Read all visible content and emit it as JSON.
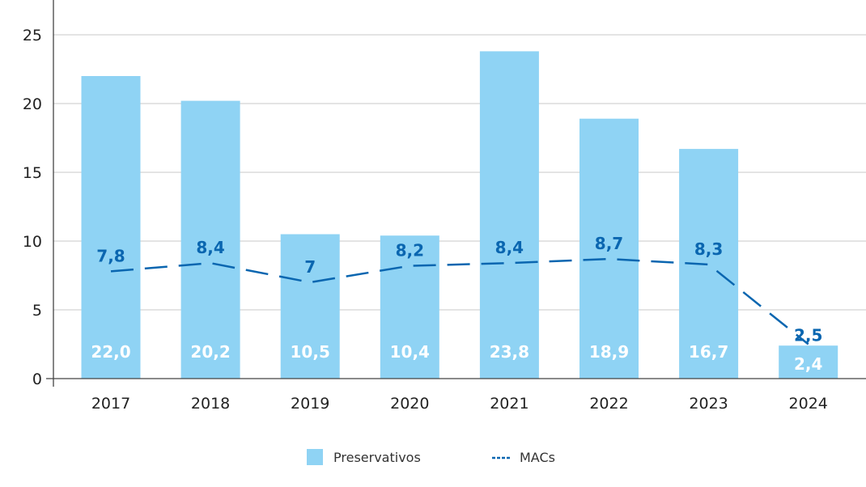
{
  "chart_data": {
    "type": "bar",
    "title": "",
    "xlabel": "",
    "ylabel": "",
    "ylim": [
      0,
      25
    ],
    "yticks": [
      0,
      5,
      10,
      15,
      20,
      25
    ],
    "ytick_labels": [
      "0",
      "5",
      "10",
      "15",
      "20",
      "25"
    ],
    "grid": true,
    "categories": [
      "2017",
      "2018",
      "2019",
      "2020",
      "2021",
      "2022",
      "2023",
      "2024"
    ],
    "series": [
      {
        "name": "Preservativos",
        "type": "bar",
        "color": "#8fd3f4",
        "values": [
          22.0,
          20.2,
          10.5,
          10.4,
          23.8,
          18.9,
          16.7,
          2.4
        ],
        "labels": [
          "22,0",
          "20,2",
          "10,5",
          "10,4",
          "23,8",
          "18,9",
          "16,7",
          "2,4"
        ]
      },
      {
        "name": "MACs",
        "type": "line",
        "style": "dashed",
        "color": "#0a66b0",
        "values": [
          7.8,
          8.4,
          7,
          8.2,
          8.4,
          8.7,
          8.3,
          2.5
        ],
        "labels": [
          "7,8",
          "8,4",
          "7",
          "8,2",
          "8,4",
          "8,7",
          "8,3",
          "2,5"
        ]
      }
    ],
    "legend": {
      "position": "bottom-center",
      "entries": [
        "Preservativos",
        "MACs"
      ]
    }
  }
}
